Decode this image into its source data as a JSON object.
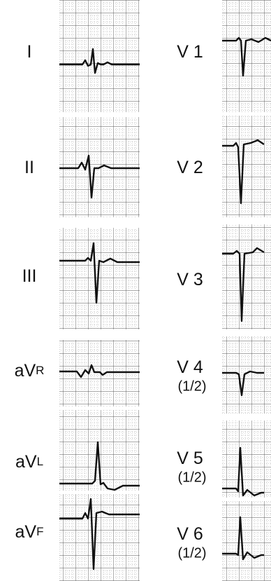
{
  "leads": [
    {
      "main": "I"
    },
    {
      "main": "II"
    },
    {
      "main": "III"
    },
    {
      "main": "aV",
      "sub": "R"
    },
    {
      "main": "aV",
      "sub": "L"
    },
    {
      "main": "aV",
      "sub": "F"
    },
    {
      "main": "V 1"
    },
    {
      "main": "V 2"
    },
    {
      "main": "V 3"
    },
    {
      "main": "V 4",
      "note": "(1/2)"
    },
    {
      "main": "V 5",
      "note": "(1/2)"
    },
    {
      "main": "V 6",
      "note": "(1/2)"
    }
  ]
}
